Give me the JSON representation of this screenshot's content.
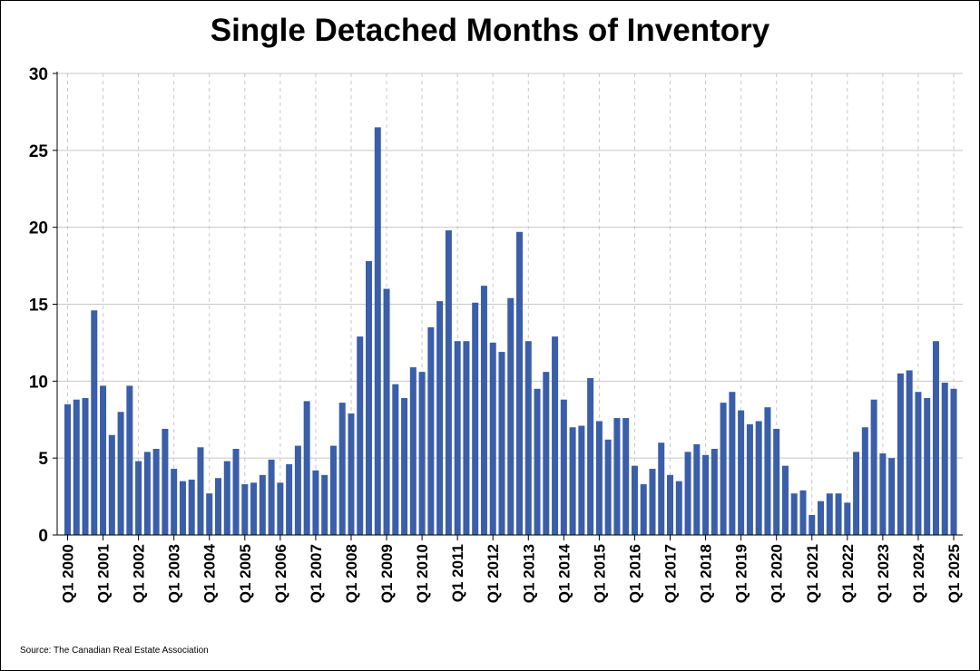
{
  "chart_data": {
    "type": "bar",
    "title": "Single Detached Months of Inventory",
    "source": "Source: The Canadian Real Estate Association",
    "xlabel": "",
    "ylabel": "",
    "ylim": [
      0,
      30
    ],
    "yticks": [
      0,
      5,
      10,
      15,
      20,
      25,
      30
    ],
    "xtick_labels": [
      "Q1 2000",
      "Q1 2001",
      "Q1 2002",
      "Q1 2003",
      "Q1 2004",
      "Q1 2005",
      "Q1 2006",
      "Q1 2007",
      "Q1 2008",
      "Q1 2009",
      "Q1 2010",
      "Q1 2011",
      "Q1 2012",
      "Q1 2013",
      "Q1 2014",
      "Q1 2015",
      "Q1 2016",
      "Q1 2017",
      "Q1 2018",
      "Q1 2019",
      "Q1 2020",
      "Q1 2021",
      "Q1 2022",
      "Q1 2023",
      "Q1 2024",
      "Q1 2025"
    ],
    "grid": {
      "horizontal": true,
      "vertical": "dashed"
    },
    "bar_color": "#3a5ea8",
    "categories": [
      "Q1 2000",
      "Q2 2000",
      "Q3 2000",
      "Q4 2000",
      "Q1 2001",
      "Q2 2001",
      "Q3 2001",
      "Q4 2001",
      "Q1 2002",
      "Q2 2002",
      "Q3 2002",
      "Q4 2002",
      "Q1 2003",
      "Q2 2003",
      "Q3 2003",
      "Q4 2003",
      "Q1 2004",
      "Q2 2004",
      "Q3 2004",
      "Q4 2004",
      "Q1 2005",
      "Q2 2005",
      "Q3 2005",
      "Q4 2005",
      "Q1 2006",
      "Q2 2006",
      "Q3 2006",
      "Q4 2006",
      "Q1 2007",
      "Q2 2007",
      "Q3 2007",
      "Q4 2007",
      "Q1 2008",
      "Q2 2008",
      "Q3 2008",
      "Q4 2008",
      "Q1 2009",
      "Q2 2009",
      "Q3 2009",
      "Q4 2009",
      "Q1 2010",
      "Q2 2010",
      "Q3 2010",
      "Q4 2010",
      "Q1 2011",
      "Q2 2011",
      "Q3 2011",
      "Q4 2011",
      "Q1 2012",
      "Q2 2012",
      "Q3 2012",
      "Q4 2012",
      "Q1 2013",
      "Q2 2013",
      "Q3 2013",
      "Q4 2013",
      "Q1 2014",
      "Q2 2014",
      "Q3 2014",
      "Q4 2014",
      "Q1 2015",
      "Q2 2015",
      "Q3 2015",
      "Q4 2015",
      "Q1 2016",
      "Q2 2016",
      "Q3 2016",
      "Q4 2016",
      "Q1 2017",
      "Q2 2017",
      "Q3 2017",
      "Q4 2017",
      "Q1 2018",
      "Q2 2018",
      "Q3 2018",
      "Q4 2018",
      "Q1 2019",
      "Q2 2019",
      "Q3 2019",
      "Q4 2019",
      "Q1 2020",
      "Q2 2020",
      "Q3 2020",
      "Q4 2020",
      "Q1 2021",
      "Q2 2021",
      "Q3 2021",
      "Q4 2021",
      "Q1 2022",
      "Q2 2022",
      "Q3 2022",
      "Q4 2022",
      "Q1 2023",
      "Q2 2023",
      "Q3 2023",
      "Q4 2023",
      "Q1 2024",
      "Q2 2024",
      "Q3 2024",
      "Q4 2024",
      "Q1 2025"
    ],
    "values": [
      8.5,
      8.8,
      8.9,
      14.6,
      9.7,
      6.5,
      8.0,
      9.7,
      4.8,
      5.4,
      5.6,
      6.9,
      4.3,
      3.5,
      3.6,
      5.7,
      2.7,
      3.7,
      4.8,
      5.6,
      3.3,
      3.4,
      3.9,
      4.9,
      3.4,
      4.6,
      5.8,
      8.7,
      4.2,
      3.9,
      5.8,
      8.6,
      7.9,
      12.9,
      17.8,
      26.5,
      16.0,
      9.8,
      8.9,
      10.9,
      10.6,
      13.5,
      15.2,
      19.8,
      12.6,
      12.6,
      15.1,
      16.2,
      12.5,
      11.9,
      15.4,
      19.7,
      12.6,
      9.5,
      10.6,
      12.9,
      8.8,
      7.0,
      7.1,
      10.2,
      7.4,
      6.2,
      7.6,
      7.6,
      4.5,
      3.3,
      4.3,
      6.0,
      3.9,
      3.5,
      5.4,
      5.9,
      5.2,
      5.6,
      8.6,
      9.3,
      8.1,
      7.2,
      7.4,
      8.3,
      6.9,
      4.5,
      2.7,
      2.9,
      1.3,
      2.2,
      2.7,
      2.7,
      2.1,
      5.4,
      7.0,
      8.8,
      5.3,
      5.0,
      10.5,
      10.7,
      9.3,
      8.9,
      12.6,
      9.9,
      9.5
    ]
  }
}
